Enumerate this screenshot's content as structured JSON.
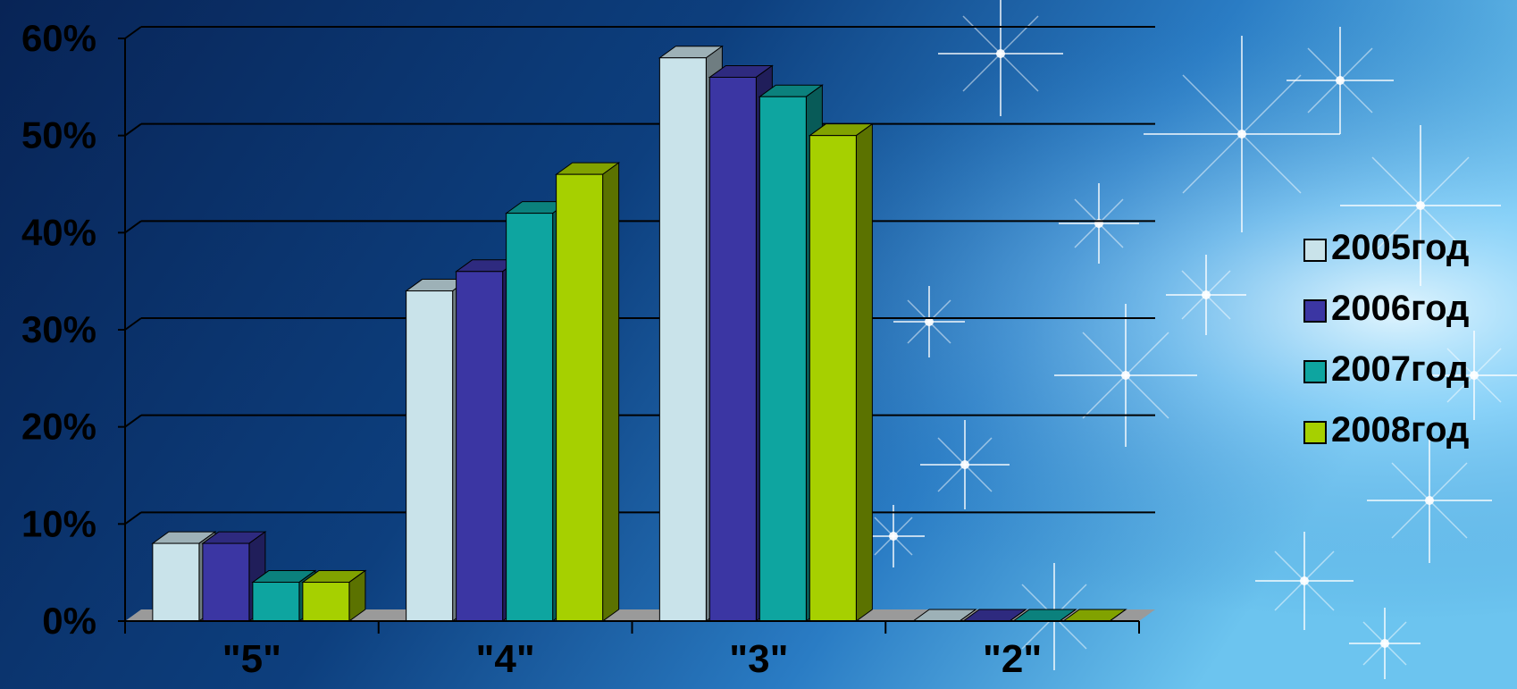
{
  "chart_data": {
    "type": "bar",
    "title": "",
    "xlabel": "",
    "ylabel": "",
    "categories": [
      "\"5\"",
      "\"4\"",
      "\"3\"",
      "\"2\""
    ],
    "series": [
      {
        "name": "2005год",
        "values": [
          8,
          34,
          58,
          0
        ],
        "color": "#c9e3ea"
      },
      {
        "name": "2006год",
        "values": [
          8,
          36,
          56,
          0
        ],
        "color": "#3b36a3"
      },
      {
        "name": "2007год",
        "values": [
          4,
          42,
          54,
          0
        ],
        "color": "#0ea5a0"
      },
      {
        "name": "2008год",
        "values": [
          4,
          46,
          50,
          0
        ],
        "color": "#a6d000"
      }
    ],
    "ylim": [
      0,
      60
    ],
    "yticks": [
      0,
      10,
      20,
      30,
      40,
      50,
      60
    ],
    "ytick_labels": [
      "0%",
      "10%",
      "20%",
      "30%",
      "40%",
      "50%",
      "60%"
    ],
    "grid": true,
    "style": "3d-column",
    "legend_position": "right"
  },
  "colors": {
    "background_deep": "#0a2a5e",
    "background_light": "#4fb0e6",
    "gridline": "#000000",
    "floor": "#9a9a9a"
  }
}
